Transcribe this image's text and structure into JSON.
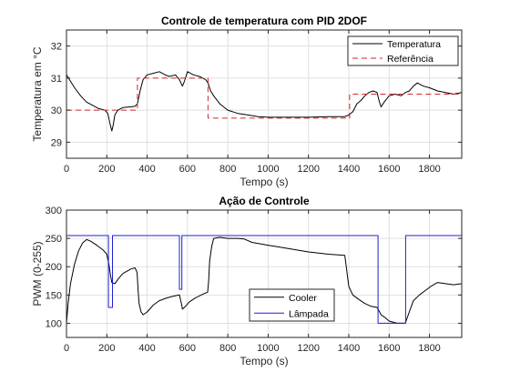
{
  "chart_data": [
    {
      "type": "line",
      "title": "Controle de temperatura com PID 2DOF",
      "xlabel": "Tempo (s)",
      "ylabel": "Temperatura em °C",
      "xlim": [
        0,
        1960
      ],
      "ylim": [
        28.5,
        32.5
      ],
      "xticks": [
        0,
        200,
        400,
        600,
        800,
        1000,
        1200,
        1400,
        1600,
        1800
      ],
      "yticks": [
        29,
        30,
        31,
        32
      ],
      "grid": true,
      "legend_position": "top-right",
      "series": [
        {
          "name": "Temperatura",
          "color": "#000000",
          "style": "solid",
          "points": [
            [
              0,
              31.1
            ],
            [
              15,
              30.95
            ],
            [
              40,
              30.7
            ],
            [
              70,
              30.45
            ],
            [
              100,
              30.25
            ],
            [
              130,
              30.15
            ],
            [
              160,
              30.05
            ],
            [
              190,
              30.0
            ],
            [
              205,
              29.9
            ],
            [
              215,
              29.6
            ],
            [
              225,
              29.35
            ],
            [
              232,
              29.55
            ],
            [
              240,
              29.85
            ],
            [
              255,
              30.0
            ],
            [
              280,
              30.08
            ],
            [
              310,
              30.1
            ],
            [
              340,
              30.12
            ],
            [
              352,
              30.2
            ],
            [
              365,
              30.6
            ],
            [
              380,
              30.95
            ],
            [
              400,
              31.1
            ],
            [
              430,
              31.15
            ],
            [
              460,
              31.2
            ],
            [
              490,
              31.1
            ],
            [
              510,
              31.05
            ],
            [
              540,
              31.1
            ],
            [
              560,
              30.95
            ],
            [
              575,
              30.75
            ],
            [
              585,
              30.9
            ],
            [
              600,
              31.2
            ],
            [
              630,
              31.1
            ],
            [
              660,
              31.05
            ],
            [
              690,
              30.95
            ],
            [
              702,
              30.85
            ],
            [
              715,
              30.6
            ],
            [
              730,
              30.45
            ],
            [
              760,
              30.2
            ],
            [
              800,
              30.0
            ],
            [
              850,
              29.9
            ],
            [
              900,
              29.85
            ],
            [
              950,
              29.8
            ],
            [
              1000,
              29.78
            ],
            [
              1100,
              29.78
            ],
            [
              1200,
              29.78
            ],
            [
              1300,
              29.8
            ],
            [
              1380,
              29.8
            ],
            [
              1400,
              29.85
            ],
            [
              1420,
              29.95
            ],
            [
              1440,
              30.2
            ],
            [
              1460,
              30.3
            ],
            [
              1480,
              30.45
            ],
            [
              1500,
              30.55
            ],
            [
              1520,
              30.6
            ],
            [
              1540,
              30.55
            ],
            [
              1550,
              30.3
            ],
            [
              1560,
              30.1
            ],
            [
              1575,
              30.25
            ],
            [
              1600,
              30.45
            ],
            [
              1630,
              30.5
            ],
            [
              1660,
              30.45
            ],
            [
              1680,
              30.55
            ],
            [
              1700,
              30.6
            ],
            [
              1720,
              30.75
            ],
            [
              1740,
              30.85
            ],
            [
              1770,
              30.75
            ],
            [
              1800,
              30.7
            ],
            [
              1840,
              30.6
            ],
            [
              1880,
              30.55
            ],
            [
              1920,
              30.5
            ],
            [
              1960,
              30.55
            ]
          ]
        },
        {
          "name": "Referência",
          "color": "#d62728",
          "style": "dashed",
          "points": [
            [
              0,
              30
            ],
            [
              352,
              30
            ],
            [
              352,
              31
            ],
            [
              702,
              31
            ],
            [
              702,
              29.75
            ],
            [
              1404,
              29.75
            ],
            [
              1404,
              30.5
            ],
            [
              1960,
              30.5
            ]
          ]
        }
      ]
    },
    {
      "type": "line",
      "title": "Ação de Controle",
      "xlabel": "Tempo (s)",
      "ylabel": "PWM (0-255)",
      "xlim": [
        0,
        1960
      ],
      "ylim": [
        75,
        300
      ],
      "xticks": [
        0,
        200,
        400,
        600,
        800,
        1000,
        1200,
        1400,
        1600,
        1800
      ],
      "yticks": [
        100,
        150,
        200,
        250,
        300
      ],
      "grid": true,
      "legend_position": "bottom-center",
      "series": [
        {
          "name": "Cooler",
          "color": "#000000",
          "style": "solid",
          "points": [
            [
              0,
              100
            ],
            [
              8,
              135
            ],
            [
              20,
              170
            ],
            [
              40,
              205
            ],
            [
              60,
              228
            ],
            [
              80,
              242
            ],
            [
              100,
              248
            ],
            [
              120,
              245
            ],
            [
              150,
              238
            ],
            [
              180,
              230
            ],
            [
              200,
              222
            ],
            [
              210,
              205
            ],
            [
              218,
              185
            ],
            [
              225,
              172
            ],
            [
              240,
              170
            ],
            [
              260,
              180
            ],
            [
              280,
              188
            ],
            [
              300,
              192
            ],
            [
              320,
              196
            ],
            [
              340,
              198
            ],
            [
              350,
              190
            ],
            [
              355,
              160
            ],
            [
              360,
              135
            ],
            [
              370,
              120
            ],
            [
              380,
              115
            ],
            [
              400,
              120
            ],
            [
              430,
              132
            ],
            [
              460,
              140
            ],
            [
              500,
              145
            ],
            [
              530,
              148
            ],
            [
              560,
              150
            ],
            [
              570,
              135
            ],
            [
              575,
              125
            ],
            [
              590,
              130
            ],
            [
              610,
              138
            ],
            [
              640,
              145
            ],
            [
              680,
              152
            ],
            [
              700,
              155
            ],
            [
              705,
              175
            ],
            [
              710,
              210
            ],
            [
              720,
              235
            ],
            [
              730,
              250
            ],
            [
              760,
              252
            ],
            [
              800,
              250
            ],
            [
              850,
              250
            ],
            [
              880,
              249
            ],
            [
              920,
              243
            ],
            [
              1000,
              238
            ],
            [
              1100,
              232
            ],
            [
              1200,
              226
            ],
            [
              1300,
              222
            ],
            [
              1380,
              220
            ],
            [
              1400,
              165
            ],
            [
              1420,
              150
            ],
            [
              1450,
              142
            ],
            [
              1480,
              135
            ],
            [
              1510,
              130
            ],
            [
              1540,
              128
            ],
            [
              1550,
              122
            ],
            [
              1560,
              115
            ],
            [
              1580,
              110
            ],
            [
              1600,
              104
            ],
            [
              1640,
              100
            ],
            [
              1680,
              100
            ],
            [
              1700,
              120
            ],
            [
              1720,
              140
            ],
            [
              1750,
              150
            ],
            [
              1780,
              158
            ],
            [
              1810,
              166
            ],
            [
              1840,
              172
            ],
            [
              1880,
              170
            ],
            [
              1920,
              168
            ],
            [
              1960,
              170
            ]
          ]
        },
        {
          "name": "Lâmpada",
          "color": "#1f1fd6",
          "style": "solid",
          "points": [
            [
              0,
              255
            ],
            [
              208,
              255
            ],
            [
              208,
              128
            ],
            [
              228,
              128
            ],
            [
              228,
              255
            ],
            [
              560,
              255
            ],
            [
              560,
              160
            ],
            [
              572,
              160
            ],
            [
              572,
              255
            ],
            [
              1545,
              255
            ],
            [
              1545,
              100
            ],
            [
              1682,
              100
            ],
            [
              1682,
              255
            ],
            [
              1960,
              255
            ]
          ]
        }
      ]
    }
  ]
}
